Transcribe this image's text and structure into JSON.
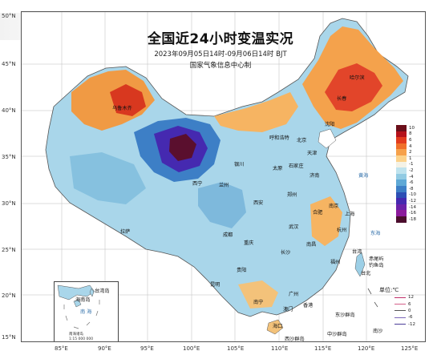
{
  "title": "全国近24小时变温实况",
  "subtitle": "2023年09月05日14时-09月06日14时  BJT",
  "organization": "国家气象信息中心制",
  "lat_ticks": [
    "50°N",
    "45°N",
    "40°N",
    "35°N",
    "30°N",
    "25°N",
    "20°N",
    "15°N"
  ],
  "lon_ticks": [
    "85°E",
    "90°E",
    "95°E",
    "100°E",
    "105°E",
    "110°E",
    "115°E",
    "120°E",
    "125°E"
  ],
  "legend": {
    "unit": "单位:℃",
    "bins": [
      {
        "label": "10",
        "color": "#6b0f1a"
      },
      {
        "label": "8",
        "color": "#b5121b"
      },
      {
        "label": "6",
        "color": "#e23b1e"
      },
      {
        "label": "4",
        "color": "#f0702a"
      },
      {
        "label": "2",
        "color": "#f6a14a"
      },
      {
        "label": "1",
        "color": "#fcd28a"
      },
      {
        "label": "-1",
        "color": "#f4f2e6"
      },
      {
        "label": "-2",
        "color": "#bfe3ee"
      },
      {
        "label": "-4",
        "color": "#92cbe3"
      },
      {
        "label": "-6",
        "color": "#5fa9d6"
      },
      {
        "label": "-8",
        "color": "#3d7fc6"
      },
      {
        "label": "-10",
        "color": "#2d4fb5"
      },
      {
        "label": "-12",
        "color": "#4529b0"
      },
      {
        "label": "-14",
        "color": "#6a21a8"
      },
      {
        "label": "-16",
        "color": "#8c1a9c"
      },
      {
        "label": "-18",
        "color": "#4b0d2d"
      }
    ],
    "lines": [
      {
        "label": "12",
        "color": "#c0306a"
      },
      {
        "label": "6",
        "color": "#d4608a"
      },
      {
        "label": "0",
        "color": "#555555"
      },
      {
        "label": "-6",
        "color": "#7b66b8"
      },
      {
        "label": "-12",
        "color": "#4a3d99"
      }
    ]
  },
  "inset": {
    "caption_line1": "南海诸岛",
    "caption_line2": "1:15 000 000",
    "labels": [
      "台湾岛",
      "海南岛",
      "南 海"
    ]
  },
  "cities": [
    {
      "name": "哈尔滨"
    },
    {
      "name": "长春"
    },
    {
      "name": "沈阳"
    },
    {
      "name": "呼和浩特"
    },
    {
      "name": "北京"
    },
    {
      "name": "天津"
    },
    {
      "name": "石家庄"
    },
    {
      "name": "太原"
    },
    {
      "name": "济南"
    },
    {
      "name": "银川"
    },
    {
      "name": "兰州"
    },
    {
      "name": "西宁"
    },
    {
      "name": "郑州"
    },
    {
      "name": "西安"
    },
    {
      "name": "合肥"
    },
    {
      "name": "南京"
    },
    {
      "name": "上海"
    },
    {
      "name": "杭州"
    },
    {
      "name": "武汉"
    },
    {
      "name": "成都"
    },
    {
      "name": "重庆"
    },
    {
      "name": "长沙"
    },
    {
      "name": "南昌"
    },
    {
      "name": "福州"
    },
    {
      "name": "贵阳"
    },
    {
      "name": "昆明"
    },
    {
      "name": "南宁"
    },
    {
      "name": "广州"
    },
    {
      "name": "香港"
    },
    {
      "name": "澳门"
    },
    {
      "name": "台北"
    },
    {
      "name": "海口"
    },
    {
      "name": "拉萨"
    },
    {
      "name": "乌鲁木齐"
    },
    {
      "name": "赤尾屿"
    },
    {
      "name": "钓鱼岛"
    },
    {
      "name": "东沙群岛"
    },
    {
      "name": "西沙群岛"
    },
    {
      "name": "中沙群岛"
    },
    {
      "name": "南沙"
    },
    {
      "name": "黄海"
    },
    {
      "name": "东海"
    },
    {
      "name": "台湾"
    }
  ]
}
